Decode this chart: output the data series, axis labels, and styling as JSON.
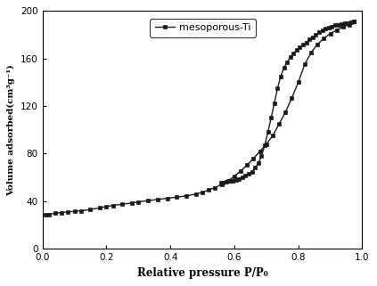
{
  "title": "",
  "xlabel": "Relative pressure P/P₀",
  "ylabel": "Volume adsorbed(cm³g⁻¹)",
  "legend_label": "mesoporous-Ti",
  "xlim": [
    0.0,
    1.0
  ],
  "ylim": [
    0,
    200
  ],
  "yticks": [
    0,
    40,
    80,
    120,
    160,
    200
  ],
  "xticks": [
    0.0,
    0.2,
    0.4,
    0.6,
    0.8,
    1.0
  ],
  "line_color": "#1a1a1a",
  "marker": "s",
  "adsorption_x": [
    0.01,
    0.02,
    0.04,
    0.06,
    0.08,
    0.1,
    0.12,
    0.15,
    0.18,
    0.2,
    0.22,
    0.25,
    0.28,
    0.3,
    0.33,
    0.36,
    0.39,
    0.42,
    0.45,
    0.48,
    0.5,
    0.52,
    0.54,
    0.56,
    0.58,
    0.6,
    0.62,
    0.64,
    0.66,
    0.68,
    0.7,
    0.72,
    0.74,
    0.76,
    0.78,
    0.8,
    0.82,
    0.84,
    0.86,
    0.88,
    0.9,
    0.92,
    0.94,
    0.96,
    0.975
  ],
  "adsorption_y": [
    28.5,
    29.0,
    29.8,
    30.5,
    31.0,
    31.5,
    32.0,
    33.0,
    34.5,
    35.5,
    36.5,
    37.5,
    38.5,
    39.5,
    40.5,
    41.5,
    42.5,
    43.5,
    44.5,
    46.0,
    47.5,
    49.5,
    51.5,
    54.0,
    57.0,
    61.0,
    65.5,
    70.5,
    76.0,
    82.0,
    88.0,
    95.0,
    105.0,
    115.0,
    127.0,
    140.0,
    155.0,
    165.0,
    172.0,
    177.0,
    181.0,
    184.0,
    186.5,
    188.5,
    191.0
  ],
  "desorption_x": [
    0.975,
    0.965,
    0.955,
    0.945,
    0.935,
    0.925,
    0.915,
    0.905,
    0.895,
    0.885,
    0.875,
    0.865,
    0.855,
    0.845,
    0.835,
    0.825,
    0.815,
    0.805,
    0.795,
    0.785,
    0.775,
    0.765,
    0.755,
    0.745,
    0.735,
    0.725,
    0.715,
    0.705,
    0.695,
    0.685,
    0.675,
    0.665,
    0.655,
    0.645,
    0.635,
    0.625,
    0.615,
    0.605,
    0.595,
    0.585,
    0.575,
    0.565,
    0.558
  ],
  "desorption_y": [
    191.0,
    190.5,
    190.0,
    189.5,
    189.0,
    188.5,
    188.0,
    187.0,
    186.0,
    185.0,
    183.5,
    182.0,
    180.0,
    178.0,
    176.0,
    173.5,
    171.5,
    169.5,
    167.0,
    164.5,
    161.0,
    157.0,
    152.0,
    145.0,
    135.0,
    122.0,
    110.0,
    98.0,
    87.0,
    78.0,
    72.0,
    68.0,
    65.0,
    63.0,
    61.5,
    60.0,
    59.0,
    58.0,
    57.5,
    57.0,
    56.5,
    56.0,
    55.5
  ]
}
